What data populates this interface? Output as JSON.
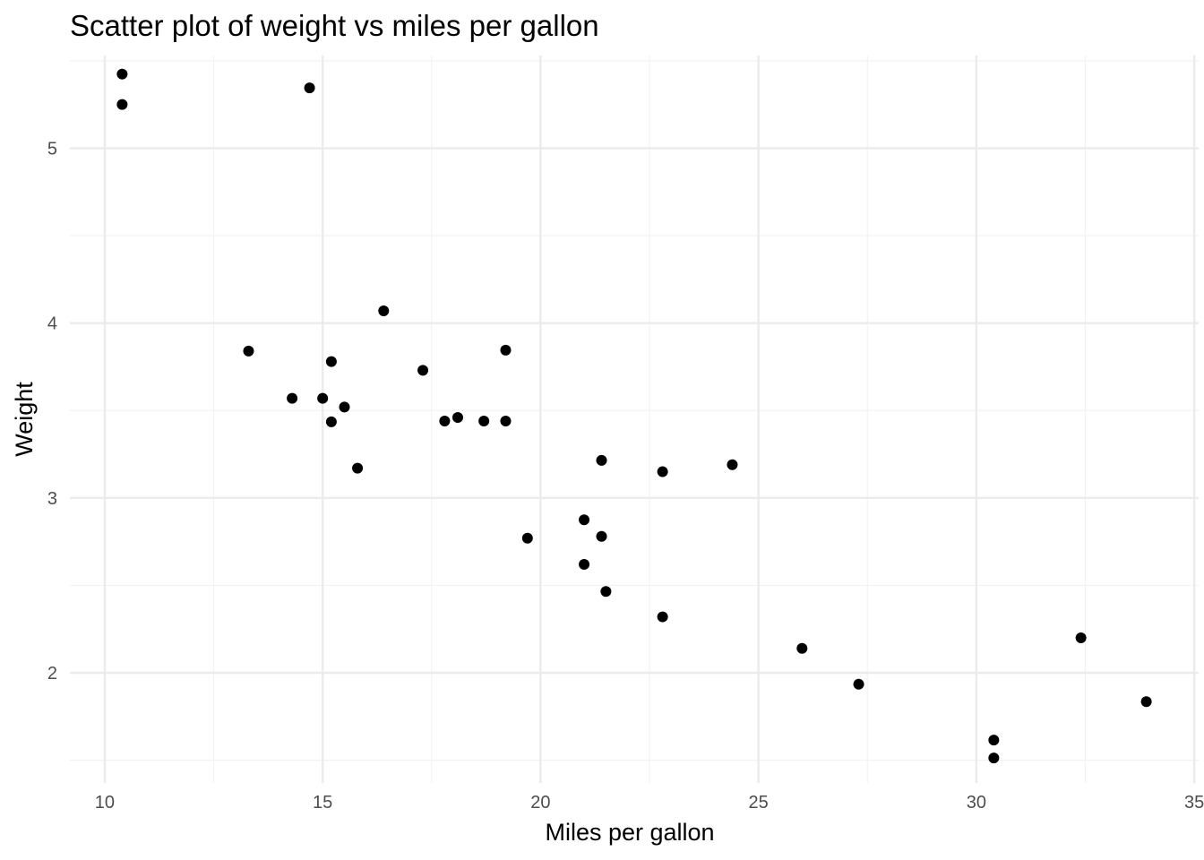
{
  "chart_data": {
    "type": "scatter",
    "title": "Scatter plot of weight vs miles per gallon",
    "xlabel": "Miles per gallon",
    "ylabel": "Weight",
    "xlim": [
      9.2,
      35.1
    ],
    "ylim": [
      1.37,
      5.53
    ],
    "x_ticks": [
      10,
      15,
      20,
      25,
      30,
      35
    ],
    "x_minor": [
      12.5,
      17.5,
      22.5,
      27.5,
      32.5
    ],
    "y_ticks": [
      2,
      3,
      4,
      5
    ],
    "y_minor": [
      1.5,
      2.5,
      3.5,
      4.5,
      5.5
    ],
    "x_tick_labels": [
      "10",
      "15",
      "20",
      "25",
      "30",
      "35"
    ],
    "y_tick_labels": [
      "2",
      "3",
      "4",
      "5"
    ],
    "grid": true,
    "point_color": "#000000",
    "points": [
      {
        "x": 21.0,
        "y": 2.62
      },
      {
        "x": 21.0,
        "y": 2.875
      },
      {
        "x": 22.8,
        "y": 2.32
      },
      {
        "x": 21.4,
        "y": 3.215
      },
      {
        "x": 18.7,
        "y": 3.44
      },
      {
        "x": 18.1,
        "y": 3.46
      },
      {
        "x": 14.3,
        "y": 3.57
      },
      {
        "x": 24.4,
        "y": 3.19
      },
      {
        "x": 22.8,
        "y": 3.15
      },
      {
        "x": 19.2,
        "y": 3.44
      },
      {
        "x": 17.8,
        "y": 3.44
      },
      {
        "x": 16.4,
        "y": 4.07
      },
      {
        "x": 17.3,
        "y": 3.73
      },
      {
        "x": 15.2,
        "y": 3.78
      },
      {
        "x": 10.4,
        "y": 5.25
      },
      {
        "x": 10.4,
        "y": 5.424
      },
      {
        "x": 14.7,
        "y": 5.345
      },
      {
        "x": 32.4,
        "y": 2.2
      },
      {
        "x": 30.4,
        "y": 1.615
      },
      {
        "x": 33.9,
        "y": 1.835
      },
      {
        "x": 21.5,
        "y": 2.465
      },
      {
        "x": 15.5,
        "y": 3.52
      },
      {
        "x": 15.2,
        "y": 3.435
      },
      {
        "x": 13.3,
        "y": 3.84
      },
      {
        "x": 19.2,
        "y": 3.845
      },
      {
        "x": 27.3,
        "y": 1.935
      },
      {
        "x": 26.0,
        "y": 2.14
      },
      {
        "x": 30.4,
        "y": 1.513
      },
      {
        "x": 15.8,
        "y": 3.17
      },
      {
        "x": 19.7,
        "y": 2.77
      },
      {
        "x": 15.0,
        "y": 3.57
      },
      {
        "x": 21.4,
        "y": 2.78
      }
    ]
  }
}
